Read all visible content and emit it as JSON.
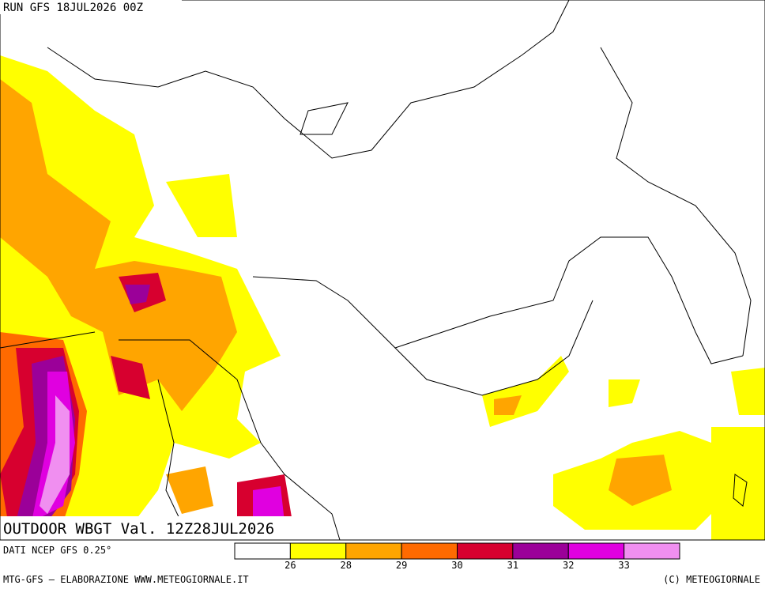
{
  "header": {
    "run": "RUN GFS 18JUL2026 00Z"
  },
  "map": {
    "title": "OUTDOOR WBGT Val. 12Z28JUL2026"
  },
  "footer": {
    "source": "DATI NCEP GFS 0.25°",
    "credit": "MTG-GFS — ELABORAZIONE WWW.METEOGIORNALE.IT",
    "copyright": "(C) METEOGIORNALE"
  },
  "legend": {
    "colors": [
      "#ffffff",
      "#ffff00",
      "#ffa500",
      "#ff6a00",
      "#d7002f",
      "#9b0099",
      "#e000e0",
      "#f08ff0"
    ],
    "ticks": [
      26,
      28,
      29,
      30,
      31,
      32,
      33
    ]
  }
}
